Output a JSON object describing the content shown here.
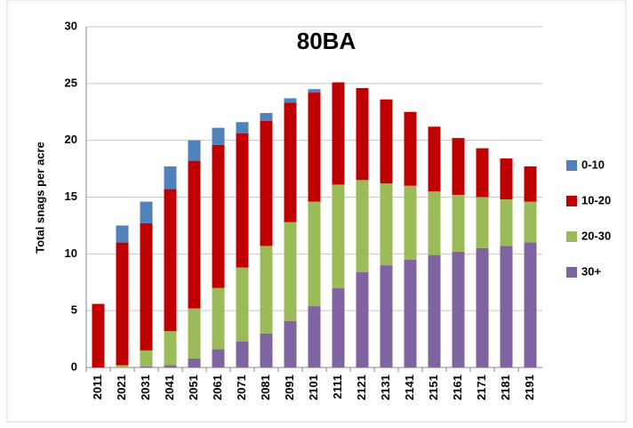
{
  "chart_data": {
    "type": "bar",
    "stacked": true,
    "title": "80BA",
    "y_label": "Total snags per acre",
    "categories": [
      "2011",
      "2021",
      "2031",
      "2041",
      "2051",
      "2061",
      "2071",
      "2081",
      "2091",
      "2101",
      "2111",
      "2121",
      "2131",
      "2141",
      "2151",
      "2161",
      "2171",
      "2181",
      "2191"
    ],
    "series": [
      {
        "name": "0-10",
        "color": "#4f81bd",
        "values": [
          0,
          1.5,
          1.9,
          2.0,
          1.8,
          1.5,
          1.0,
          0.7,
          0.4,
          0.3,
          0,
          0,
          0,
          0,
          0,
          0,
          0,
          0,
          0
        ]
      },
      {
        "name": "10-20",
        "color": "#c00000",
        "values": [
          5.6,
          10.8,
          11.2,
          12.5,
          13.0,
          12.6,
          11.8,
          11.0,
          10.5,
          9.6,
          9.0,
          8.1,
          7.4,
          6.5,
          5.7,
          5.0,
          4.3,
          3.6,
          3.1
        ]
      },
      {
        "name": "20-30",
        "color": "#9bbb59",
        "values": [
          0,
          0.2,
          1.4,
          3.0,
          4.4,
          5.4,
          6.5,
          7.7,
          8.7,
          9.2,
          9.1,
          8.1,
          7.2,
          6.5,
          5.6,
          5.0,
          4.5,
          4.1,
          3.6
        ]
      },
      {
        "name": "30+",
        "color": "#8064a2",
        "values": [
          0,
          0,
          0.1,
          0.2,
          0.8,
          1.6,
          2.3,
          3.0,
          4.1,
          5.4,
          7.0,
          8.4,
          9.0,
          9.5,
          9.9,
          10.2,
          10.5,
          10.7,
          11.0
        ]
      }
    ],
    "ylim": [
      0,
      30
    ],
    "yticks": [
      0,
      5,
      10,
      15,
      20,
      25,
      30
    ],
    "grid": true,
    "legend": "right"
  }
}
